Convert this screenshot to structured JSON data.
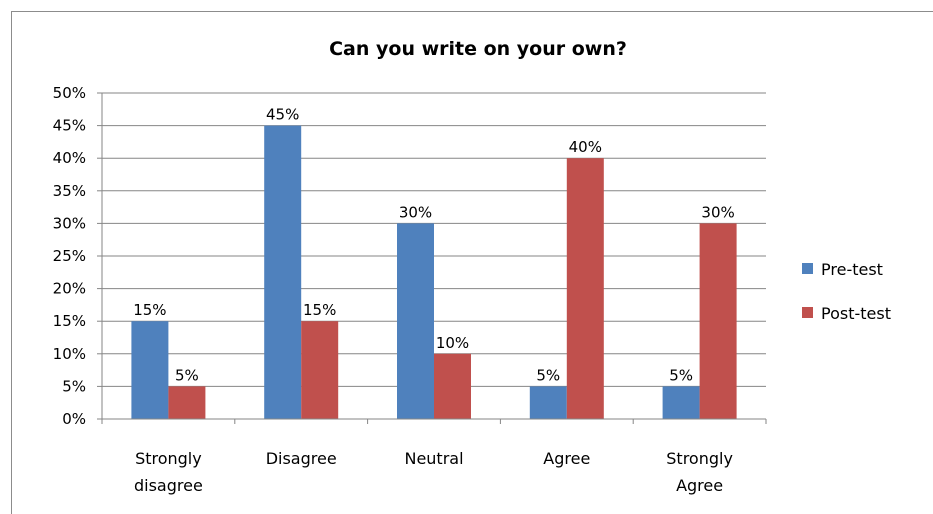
{
  "chart_data": {
    "type": "bar",
    "title": "Can you write on your own?",
    "xlabel": "",
    "ylabel": "",
    "categories": [
      [
        "Strongly",
        "disagree"
      ],
      [
        "Disagree"
      ],
      [
        "Neutral"
      ],
      [
        "Agree"
      ],
      [
        "Strongly",
        "Agree"
      ]
    ],
    "series": [
      {
        "name": "Pre-test",
        "color": "#4f81bd",
        "values": [
          15,
          45,
          30,
          5,
          5
        ]
      },
      {
        "name": "Post-test",
        "color": "#c0504d",
        "values": [
          5,
          15,
          10,
          40,
          30
        ]
      }
    ],
    "ylim": [
      0,
      50
    ],
    "ytick_step": 5,
    "yticks_format": "percent",
    "grid": true,
    "legend_position": "right",
    "data_labels": true
  }
}
